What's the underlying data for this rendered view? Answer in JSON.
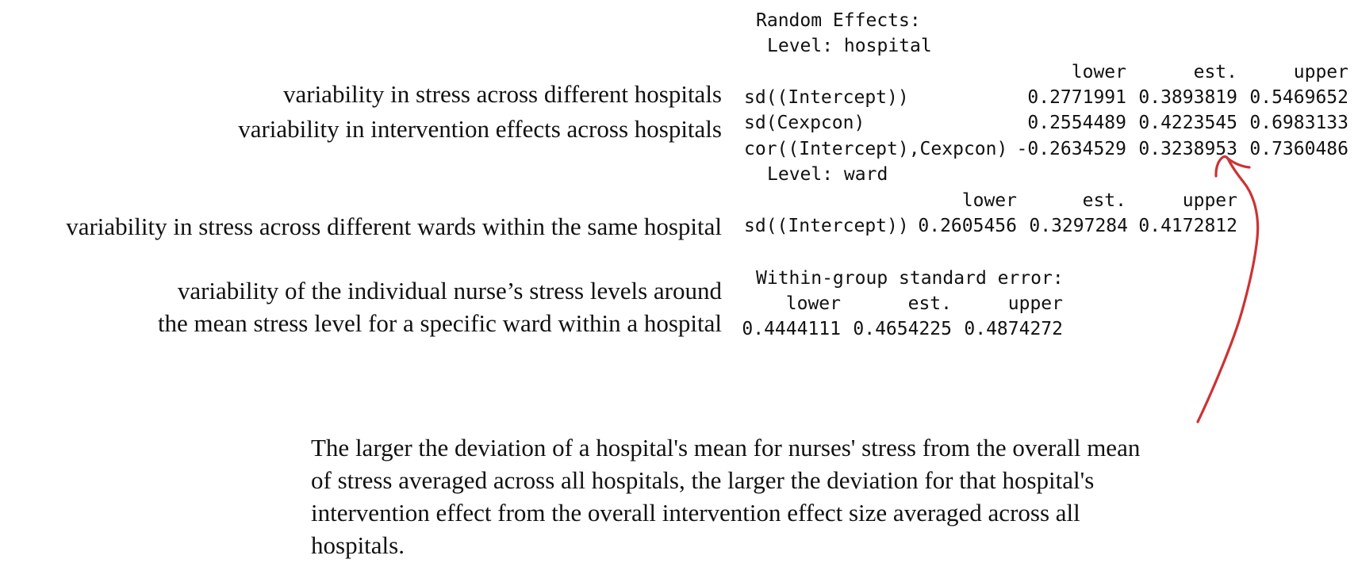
{
  "output": {
    "heading": "Random Effects:",
    "hospital_level": "Level: hospital",
    "hospital_headers": [
      "lower",
      "est.",
      "upper"
    ],
    "hospital_rows": [
      {
        "term": "sd((Intercept))",
        "lower": "0.2771991",
        "est": "0.3893819",
        "upper": "0.5469652"
      },
      {
        "term": "sd(Cexpcon)",
        "lower": "0.2554489",
        "est": "0.4223545",
        "upper": "0.6983133"
      },
      {
        "term": "cor((Intercept),Cexpcon)",
        "lower": "-0.2634529",
        "est": "0.3238953",
        "upper": "0.7360486"
      }
    ],
    "ward_level": "Level: ward",
    "ward_headers": [
      "lower",
      "est.",
      "upper"
    ],
    "ward_rows": [
      {
        "term": "sd((Intercept))",
        "lower": "0.2605456",
        "est": "0.3297284",
        "upper": "0.4172812"
      }
    ],
    "within_heading": "Within-group standard error:",
    "within_headers": [
      "lower",
      "est.",
      "upper"
    ],
    "within_values": [
      "0.4444111",
      "0.4654225",
      "0.4874272"
    ]
  },
  "annotations": {
    "hospital_intercept": "variability in stress across different hospitals",
    "hospital_slope": "variability in intervention effects across hospitals",
    "ward_intercept": "variability in stress across different wards within the same hospital",
    "residual_line1": "variability of the individual nurse’s stress levels around",
    "residual_line2": "the mean stress level for a specific ward within a hospital"
  },
  "bottom_note": {
    "lines": [
      "The larger the deviation of a hospital's mean for nurses' stress from the overall mean",
      "of stress averaged across all hospitals, the larger the deviation for that hospital's",
      "intervention effect from the overall intervention effect size averaged across all",
      "hospitals."
    ]
  },
  "colors": {
    "arrow": "#cc3333",
    "text": "#111111"
  }
}
